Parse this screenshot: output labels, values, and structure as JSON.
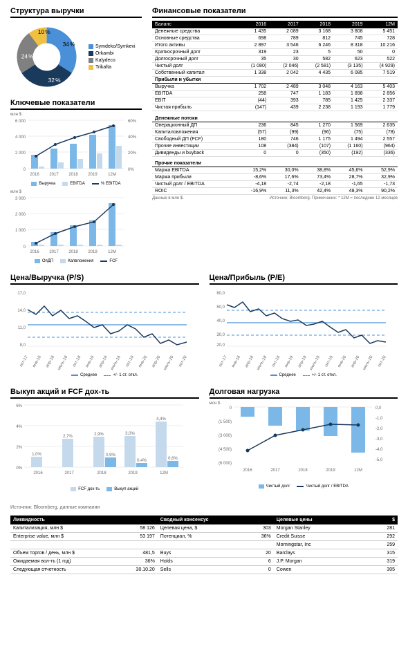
{
  "revenue_structure": {
    "title": "Структура выручки",
    "slices": [
      {
        "label": "Symdeko/Symkevi",
        "pct": 34,
        "color": "#4a90d9"
      },
      {
        "label": "Orkambi",
        "pct": 32,
        "color": "#1a3a5c"
      },
      {
        "label": "Kalydeco",
        "pct": 24,
        "color": "#808080"
      },
      {
        "label": "Trikafta",
        "pct": 10,
        "color": "#f0c040"
      }
    ]
  },
  "key_indicators": {
    "title": "Ключевые показатели",
    "chart1": {
      "ylabel": "млн $",
      "x": [
        "2016",
        "2017",
        "2018",
        "2019",
        "12M"
      ],
      "revenue": [
        1700,
        2490,
        3050,
        4160,
        5400
      ],
      "ebitda": [
        260,
        750,
        1180,
        1900,
        2860
      ],
      "ebitda_pct": [
        15,
        30,
        39,
        46,
        53
      ],
      "y_max": 6000,
      "y_step": 2000,
      "y2_max": 60,
      "y2_step": 20,
      "legend": [
        "Выручка",
        "EBITDA",
        "% EBITDA"
      ],
      "colors": {
        "revenue": "#7bb8e8",
        "ebitda": "#c5d9ed",
        "line": "#1a3a5c"
      }
    },
    "chart2": {
      "ylabel": "млн $",
      "x": [
        "2016",
        "2017",
        "2018",
        "2019",
        "12M"
      ],
      "ocf": [
        240,
        850,
        1270,
        1570,
        2640
      ],
      "capex": [
        60,
        100,
        100,
        80,
        80
      ],
      "fcf": [
        180,
        750,
        1180,
        1490,
        2560
      ],
      "y_max": 3000,
      "y_step": 1000,
      "legend": [
        "ОпДП",
        "Капвложения",
        "FCF"
      ],
      "colors": {
        "ocf": "#7bb8e8",
        "capex": "#c5d9ed",
        "line": "#1a3a5c"
      }
    }
  },
  "financials": {
    "title": "Финансовые показатели",
    "cols": [
      "Баланс",
      "2016",
      "2017",
      "2018",
      "2019",
      "12M"
    ],
    "balance": [
      [
        "Денежные средства",
        "1 435",
        "2 089",
        "3 168",
        "3 808",
        "5 451"
      ],
      [
        "Основные средства",
        "698",
        "789",
        "812",
        "745",
        "728"
      ],
      [
        "Итого активы",
        "2 897",
        "3 546",
        "6 246",
        "8 318",
        "10 216"
      ],
      [
        "Краткосрочный долг",
        "319",
        "23",
        "5",
        "50",
        "0"
      ],
      [
        "Долгосрочный долг",
        "35",
        "30",
        "582",
        "623",
        "522"
      ],
      [
        "Чистый долг",
        "(1 080)",
        "(2 046)",
        "(2 581)",
        "(3 135)",
        "(4 929)"
      ],
      [
        "Собственный капитал",
        "1 338",
        "2 042",
        "4 435",
        "6 085",
        "7 519"
      ]
    ],
    "pnl_head": "Прибыли и убытки",
    "pnl": [
      [
        "Выручка",
        "1 702",
        "2 489",
        "3 048",
        "4 163",
        "5 403"
      ],
      [
        "EBITDA",
        "258",
        "747",
        "1 183",
        "1 898",
        "2 856"
      ],
      [
        "EBIT",
        "(44)",
        "393",
        "785",
        "1 425",
        "2 337"
      ],
      [
        "Чистая прибыль",
        "(147)",
        "439",
        "2 238",
        "1 193",
        "1 779"
      ]
    ],
    "cf_head": "Денежные потоки",
    "cf": [
      [
        "Операционный ДП",
        "236",
        "845",
        "1 270",
        "1 569",
        "2 635"
      ],
      [
        "Капиталовложения",
        "(57)",
        "(99)",
        "(96)",
        "(75)",
        "(78)"
      ],
      [
        "Свободный ДП (FCF)",
        "180",
        "746",
        "1 175",
        "1 494",
        "2 557"
      ],
      [
        "Прочие инвестиции",
        "108",
        "(384)",
        "(107)",
        "(1 160)",
        "(964)"
      ],
      [
        "Дивиденды и buyback",
        "0",
        "0",
        "(350)",
        "(192)",
        "(336)"
      ]
    ],
    "other_head": "Прочие показатели",
    "other": [
      [
        "Маржа EBITDA",
        "15,2%",
        "30,0%",
        "38,8%",
        "45,6%",
        "52,9%"
      ],
      [
        "Маржа прибыли",
        "-8,6%",
        "17,6%",
        "73,4%",
        "28,7%",
        "32,9%"
      ],
      [
        "Чистый долг / EBITDA",
        "-4,18",
        "-2,74",
        "-2,18",
        "-1,65",
        "-1,73"
      ],
      [
        "ROIC",
        "-16,9%",
        "11,3%",
        "42,4%",
        "48,3%",
        "90,2%"
      ]
    ],
    "footnote_left": "Данные в млн $.",
    "footnote_right": "Источник: Bloomberg. Примечание: * 12М = последние 12 месяцев"
  },
  "ps": {
    "title": "Цена/Выручка (P/S)",
    "y_ticks": [
      "8,0",
      "11,0",
      "14,0",
      "17,0"
    ],
    "x_ticks": [
      "окт-17",
      "янв-18",
      "апр-18",
      "июль-18",
      "окт-18",
      "янв-19",
      "апр-19",
      "июль-19",
      "окт-19",
      "янв-20",
      "апр-20",
      "июль-20",
      "окт-20"
    ],
    "legend": [
      "Среднее",
      "+/- 1 ст. откл."
    ],
    "mean": 11.5,
    "upper": 13.5,
    "lower": 9.5,
    "series": [
      14,
      13.2,
      14.5,
      13,
      13.8,
      12.5,
      13,
      12,
      11,
      11.5,
      10,
      10.5,
      11.5,
      10.8,
      9.5,
      10,
      8.5,
      9,
      8.2
    ]
  },
  "pe": {
    "title": "Цена/Прибыль (P/E)",
    "y_ticks": [
      "20,0",
      "30,0",
      "40,0",
      "50,0",
      "60,0"
    ],
    "mean": 37,
    "upper": 46,
    "lower": 28,
    "series": [
      50,
      48,
      52,
      45,
      47,
      42,
      44,
      40,
      38,
      39,
      35,
      36,
      38,
      34,
      30,
      32,
      26,
      28,
      22,
      24
    ]
  },
  "buyback": {
    "title": "Выкуп акций и FCF дох-ть",
    "x": [
      "2016",
      "2017",
      "2018",
      "2019",
      "12M"
    ],
    "fcf_yield": [
      1.0,
      2.7,
      2.9,
      3.0,
      4.4
    ],
    "buyback": [
      0,
      0,
      0.9,
      0.4,
      0.6
    ],
    "labels_fcf": [
      "1,0%",
      "2,7%",
      "2,9%",
      "3,0%",
      "4,4%"
    ],
    "labels_bb": [
      "",
      "",
      "0,9%",
      "0,4%",
      "0,6%"
    ],
    "y_max": 6,
    "y_step": 2,
    "legend": [
      "FCF дох-ть",
      "Выкуп акций"
    ]
  },
  "debt": {
    "title": "Долговая нагрузка",
    "ylabel": "млн $",
    "x": [
      "2016",
      "2017",
      "2018",
      "2019",
      "12M"
    ],
    "net_debt": [
      -1080,
      -2046,
      -2581,
      -3135,
      -4929
    ],
    "ratio": [
      -4.18,
      -2.74,
      -2.18,
      -1.65,
      -1.73
    ],
    "y_ticks": [
      "0",
      "(1 500)",
      "(3 000)",
      "(4 500)",
      "(6 000)"
    ],
    "y2_ticks": [
      "0,0",
      "-1,0",
      "-2,0",
      "-3,0",
      "-4,0",
      "-5,0"
    ],
    "legend": [
      "Чистый долг",
      "Чистый долг / EBITDA"
    ]
  },
  "source": "Источник: Bloomberg, данные компании",
  "liquidity": {
    "h1": "Ликвидность",
    "h2": "Сводный консенсус",
    "h3": "Целевые цены",
    "h4": "$",
    "rows": [
      [
        "Капитализация, млн $",
        "58 126",
        "Целевая цена, $",
        "303",
        "Morgan Stanley",
        "281"
      ],
      [
        "Enterprise value, млн $",
        "53 197",
        "Потенциал, %",
        "36%",
        "Credit Suisse",
        "292"
      ],
      [
        "",
        "",
        "",
        "",
        "Morningstar, Inc",
        "259"
      ],
      [
        "Объем торгов / день, млн $",
        "481,5",
        "Buys",
        "20",
        "Barclays",
        "315"
      ],
      [
        "Ожидаемая вол-ть (1 год)",
        "36%",
        "Holds",
        "6",
        "J.P. Morgan",
        "319"
      ],
      [
        "Следующая отчетность",
        "30.10.20",
        "Sells",
        "0",
        "Cowen",
        "305"
      ]
    ]
  }
}
